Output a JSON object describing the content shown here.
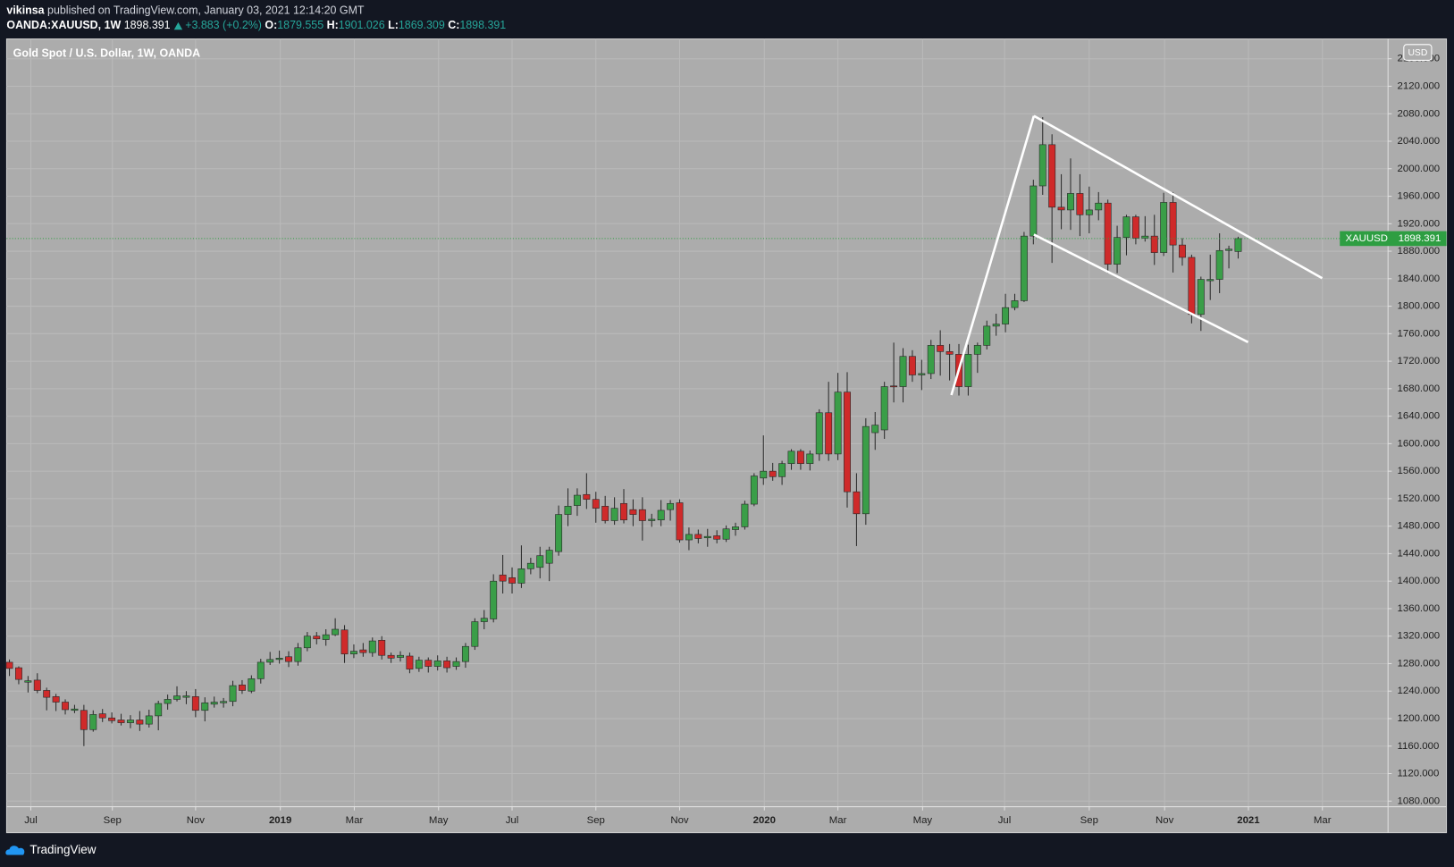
{
  "header": {
    "author": "vikinsa",
    "published": "published on TradingView.com, January 03, 2021 12:14:20 GMT",
    "symbol": "OANDA:XAUUSD, 1W",
    "change": "+3.883 (+0.2%)",
    "ohlc_labels": [
      "O:",
      "H:",
      "L:",
      "C:"
    ]
  },
  "footer": "TradingView",
  "chart_data": {
    "type": "candlestick",
    "title": "Gold Spot / U.S. Dollar, 1W, OANDA",
    "currency": "USD",
    "price_label": "XAUUSD",
    "up_color": "#3a9e48",
    "down_color": "#cf2a2a",
    "wick_color": "#2a2a2a",
    "price_line_color": "#2e9e42",
    "grid": true,
    "open": [
      1282,
      1274,
      1253,
      1256,
      1241,
      1232,
      1224,
      1212,
      1212,
      1184,
      1207,
      1201,
      1198,
      1194,
      1198,
      1192,
      1204,
      1222,
      1228,
      1231,
      1232,
      1212,
      1221,
      1223,
      1225,
      1249,
      1240,
      1258,
      1282,
      1286,
      1290,
      1283,
      1303,
      1320,
      1315,
      1322,
      1329,
      1294,
      1300,
      1296,
      1314,
      1292,
      1289,
      1291,
      1273,
      1285,
      1276,
      1284,
      1276,
      1283,
      1305,
      1341,
      1345,
      1409,
      1405,
      1397,
      1418,
      1420,
      1426,
      1443,
      1497,
      1510,
      1526,
      1519,
      1509,
      1488,
      1513,
      1504,
      1504,
      1488,
      1489,
      1504,
      1514,
      1460,
      1468,
      1463,
      1466,
      1461,
      1475,
      1479,
      1512,
      1550,
      1560,
      1552,
      1571,
      1589,
      1571,
      1585,
      1645,
      1585,
      1675,
      1530,
      1498,
      1616,
      1620,
      1684,
      1683,
      1727,
      1700,
      1702,
      1743,
      1734,
      1730,
      1683,
      1730,
      1743,
      1771,
      1774,
      1798,
      1808,
      1902,
      1975,
      2035,
      1944,
      1940,
      1964,
      1933,
      1940,
      1950,
      1861,
      1900,
      1930,
      1899,
      1902,
      1878,
      1951,
      1889,
      1871,
      1788,
      1837,
      1839,
      1881,
      1879.555
    ],
    "high": [
      1286,
      1276,
      1262,
      1266,
      1245,
      1236,
      1228,
      1220,
      1220,
      1212,
      1214,
      1209,
      1207,
      1205,
      1211,
      1213,
      1226,
      1235,
      1247,
      1240,
      1243,
      1231,
      1232,
      1230,
      1255,
      1256,
      1263,
      1287,
      1297,
      1299,
      1298,
      1310,
      1326,
      1326,
      1330,
      1346,
      1336,
      1308,
      1310,
      1318,
      1320,
      1296,
      1298,
      1296,
      1290,
      1289,
      1292,
      1290,
      1289,
      1310,
      1346,
      1358,
      1410,
      1438,
      1420,
      1452,
      1434,
      1450,
      1450,
      1510,
      1535,
      1535,
      1557,
      1530,
      1524,
      1522,
      1534,
      1519,
      1522,
      1498,
      1518,
      1518,
      1519,
      1478,
      1475,
      1476,
      1474,
      1481,
      1485,
      1517,
      1557,
      1612,
      1572,
      1575,
      1592,
      1592,
      1590,
      1650,
      1690,
      1703,
      1704,
      1557,
      1637,
      1646,
      1690,
      1747,
      1739,
      1736,
      1722,
      1751,
      1765,
      1745,
      1745,
      1744,
      1747,
      1779,
      1789,
      1818,
      1818,
      1908,
      1984,
      2075,
      2050,
      1992,
      2015,
      1992,
      1974,
      1966,
      1955,
      1917,
      1933,
      1933,
      1931,
      1933,
      1965,
      1966,
      1899,
      1875,
      1843,
      1875,
      1906,
      1888,
      1901.026
    ],
    "low": [
      1262,
      1250,
      1238,
      1237,
      1212,
      1211,
      1206,
      1208,
      1160,
      1181,
      1195,
      1193,
      1190,
      1186,
      1182,
      1187,
      1183,
      1213,
      1225,
      1221,
      1202,
      1196,
      1216,
      1216,
      1218,
      1236,
      1237,
      1251,
      1278,
      1280,
      1275,
      1277,
      1298,
      1308,
      1306,
      1320,
      1281,
      1288,
      1290,
      1290,
      1286,
      1281,
      1283,
      1266,
      1268,
      1267,
      1270,
      1267,
      1271,
      1274,
      1300,
      1330,
      1340,
      1382,
      1382,
      1390,
      1410,
      1404,
      1400,
      1437,
      1480,
      1495,
      1505,
      1485,
      1484,
      1482,
      1484,
      1480,
      1459,
      1479,
      1480,
      1488,
      1456,
      1445,
      1455,
      1450,
      1455,
      1457,
      1466,
      1475,
      1509,
      1540,
      1546,
      1540,
      1562,
      1562,
      1561,
      1575,
      1575,
      1576,
      1507,
      1451,
      1482,
      1591,
      1607,
      1660,
      1660,
      1690,
      1678,
      1694,
      1699,
      1692,
      1670,
      1670,
      1703,
      1737,
      1757,
      1762,
      1794,
      1806,
      1890,
      1962,
      1863,
      1912,
      1911,
      1902,
      1906,
      1925,
      1848,
      1848,
      1874,
      1890,
      1894,
      1860,
      1873,
      1849,
      1859,
      1775,
      1764,
      1809,
      1819,
      1855,
      1869.309
    ],
    "close": [
      1273,
      1257,
      1255,
      1241,
      1231,
      1224,
      1213,
      1214,
      1184,
      1206,
      1201,
      1197,
      1194,
      1198,
      1192,
      1204,
      1222,
      1228,
      1233,
      1233,
      1212,
      1223,
      1224,
      1225,
      1248,
      1241,
      1258,
      1282,
      1286,
      1288,
      1283,
      1303,
      1320,
      1316,
      1322,
      1330,
      1294,
      1298,
      1296,
      1313,
      1292,
      1288,
      1292,
      1272,
      1285,
      1276,
      1284,
      1274,
      1283,
      1305,
      1341,
      1346,
      1400,
      1400,
      1397,
      1418,
      1426,
      1437,
      1445,
      1497,
      1509,
      1525,
      1519,
      1506,
      1488,
      1506,
      1489,
      1497,
      1488,
      1490,
      1503,
      1513,
      1460,
      1468,
      1462,
      1465,
      1461,
      1476,
      1479,
      1512,
      1553,
      1560,
      1552,
      1571,
      1589,
      1571,
      1585,
      1645,
      1585,
      1675,
      1530,
      1498,
      1625,
      1627,
      1683,
      1683,
      1727,
      1700,
      1702,
      1743,
      1734,
      1730,
      1683,
      1730,
      1743,
      1771,
      1774,
      1798,
      1808,
      1902,
      1975,
      2035,
      1944,
      1940,
      1964,
      1933,
      1940,
      1950,
      1861,
      1900,
      1930,
      1899,
      1902,
      1878,
      1951,
      1889,
      1871,
      1788,
      1839,
      1839,
      1881,
      1883,
      1898.391
    ],
    "xlim": [
      -0.3,
      148.1
    ],
    "xticks": [
      {
        "value": 2.3,
        "label": "Jul"
      },
      {
        "value": 11.06,
        "label": "Sep"
      },
      {
        "value": 20.0,
        "label": "Nov"
      },
      {
        "value": 29.1,
        "label": "2019"
      },
      {
        "value": 37.05,
        "label": "Mar"
      },
      {
        "value": 46.1,
        "label": "May"
      },
      {
        "value": 54.0,
        "label": "Jul"
      },
      {
        "value": 63.0,
        "label": "Sep"
      },
      {
        "value": 72.0,
        "label": "Nov"
      },
      {
        "value": 81.1,
        "label": "2020"
      },
      {
        "value": 89.0,
        "label": "Mar"
      },
      {
        "value": 98.1,
        "label": "May"
      },
      {
        "value": 106.9,
        "label": "Jul"
      },
      {
        "value": 116.0,
        "label": "Sep"
      },
      {
        "value": 124.1,
        "label": "Nov"
      },
      {
        "value": 133.1,
        "label": "2021"
      },
      {
        "value": 141.05,
        "label": "Mar"
      }
    ],
    "ylim": [
      1071.8,
      2188.8
    ],
    "yticks": [
      {
        "value": 1080,
        "label": "1080.000"
      },
      {
        "value": 1120,
        "label": "1120.000"
      },
      {
        "value": 1160,
        "label": "1160.000"
      },
      {
        "value": 1200,
        "label": "1200.000"
      },
      {
        "value": 1240,
        "label": "1240.000"
      },
      {
        "value": 1280,
        "label": "1280.000"
      },
      {
        "value": 1320,
        "label": "1320.000"
      },
      {
        "value": 1360,
        "label": "1360.000"
      },
      {
        "value": 1400,
        "label": "1400.000"
      },
      {
        "value": 1440,
        "label": "1440.000"
      },
      {
        "value": 1480,
        "label": "1480.000"
      },
      {
        "value": 1520,
        "label": "1520.000"
      },
      {
        "value": 1560,
        "label": "1560.000"
      },
      {
        "value": 1600,
        "label": "1600.000"
      },
      {
        "value": 1640,
        "label": "1640.000"
      },
      {
        "value": 1680,
        "label": "1680.000"
      },
      {
        "value": 1720,
        "label": "1720.000"
      },
      {
        "value": 1760,
        "label": "1760.000"
      },
      {
        "value": 1800,
        "label": "1800.000"
      },
      {
        "value": 1840,
        "label": "1840.000"
      },
      {
        "value": 1880,
        "label": "1880.000"
      },
      {
        "value": 1920,
        "label": "1920.000"
      },
      {
        "value": 1960,
        "label": "1960.000"
      },
      {
        "value": 2000,
        "label": "2000.000"
      },
      {
        "value": 2040,
        "label": "2040.000"
      },
      {
        "value": 2080,
        "label": "2080.000"
      },
      {
        "value": 2120,
        "label": "2120.000"
      },
      {
        "value": 2160,
        "label": "2160.000"
      }
    ]
  }
}
